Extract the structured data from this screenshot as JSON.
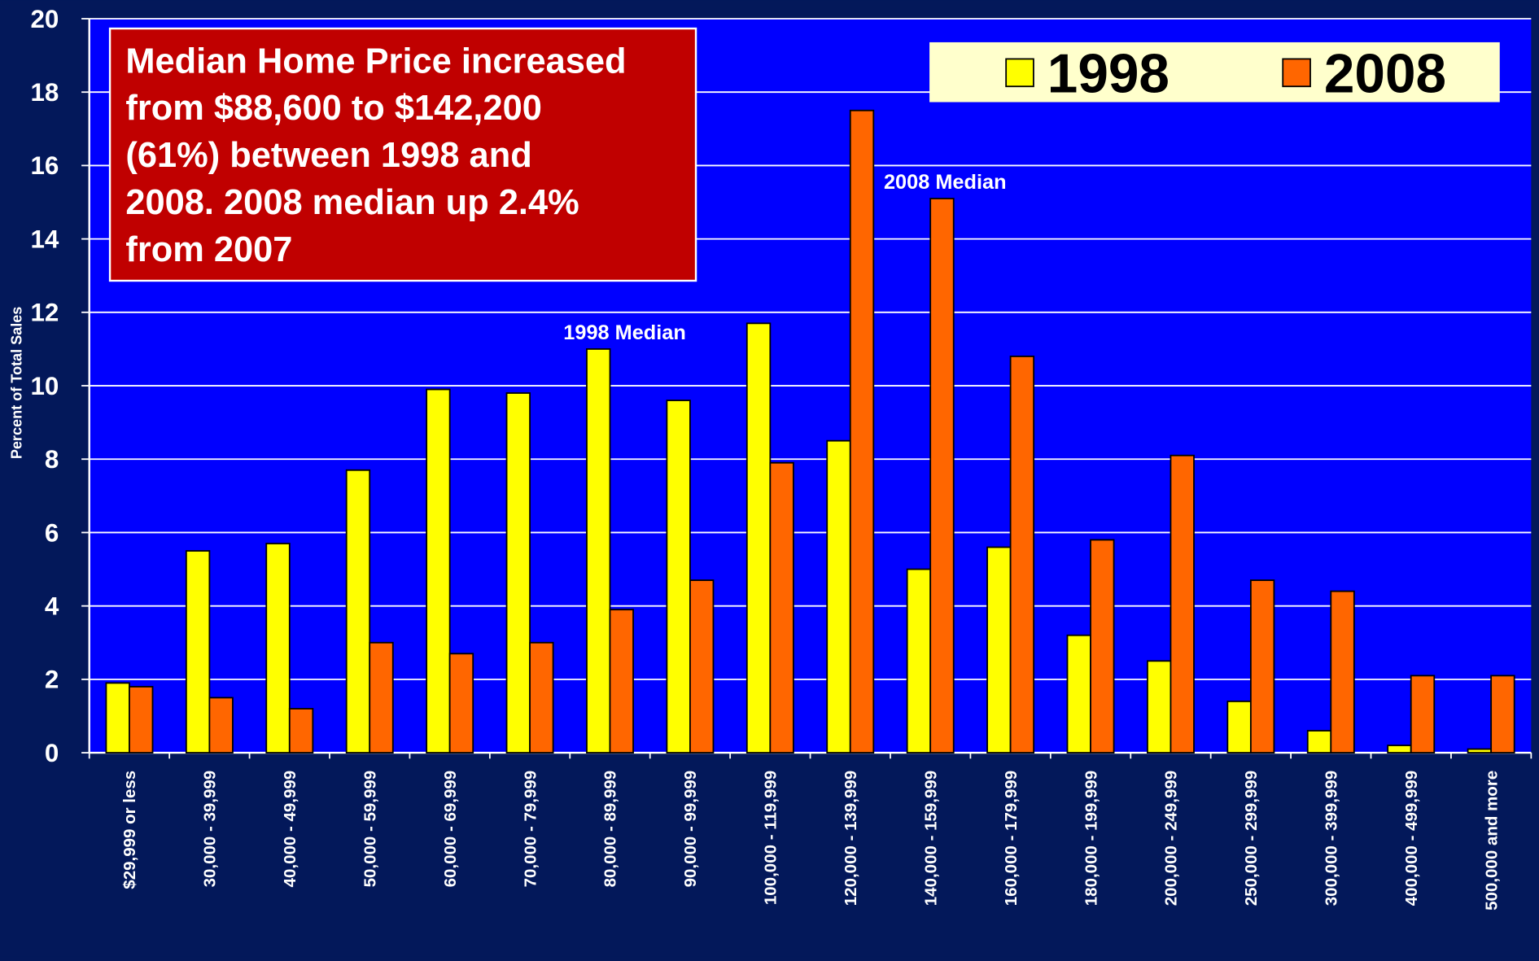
{
  "chart_data": {
    "type": "bar",
    "ylabel": "Percent of Total Sales",
    "categories": [
      "$29,999 or less",
      "30,000 - 39,999",
      "40,000 - 49,999",
      "50,000 - 59,999",
      "60,000 - 69,999",
      "70,000 - 79,999",
      "80,000 - 89,999",
      "90,000 - 99,999",
      "100,000 - 119,999",
      "120,000 - 139,999",
      "140,000 - 159,999",
      "160,000 - 179,999",
      "180,000 - 199,999",
      "200,000 - 249,999",
      "250,000 - 299,999",
      "300,000 - 399,999",
      "400,000 - 499,999",
      "500,000 and more"
    ],
    "series": [
      {
        "name": "1998",
        "color": "#ffff00",
        "values": [
          1.9,
          5.5,
          5.7,
          7.7,
          9.9,
          9.8,
          11.0,
          9.6,
          11.7,
          8.5,
          5.0,
          5.6,
          3.2,
          2.5,
          1.4,
          0.6,
          0.2,
          0.1
        ]
      },
      {
        "name": "2008",
        "color": "#ff6600",
        "values": [
          1.8,
          1.5,
          1.2,
          3.0,
          2.7,
          3.0,
          3.9,
          4.7,
          7.9,
          17.5,
          15.1,
          10.8,
          5.8,
          8.1,
          4.7,
          4.4,
          2.1,
          2.1
        ]
      }
    ],
    "ylim": [
      0,
      20
    ],
    "yticks": [
      0,
      2,
      4,
      6,
      8,
      10,
      12,
      14,
      16,
      18,
      20
    ],
    "grid": true,
    "annotations": [
      {
        "text": "1998 Median",
        "category": 6
      },
      {
        "text": "2008 Median",
        "category": 10
      }
    ],
    "text_box": [
      "Median Home Price increased",
      "from $88,600 to $142,200",
      "(61%) between 1998 and",
      "2008.  2008 median up 2.4%",
      "from 2007"
    ]
  }
}
